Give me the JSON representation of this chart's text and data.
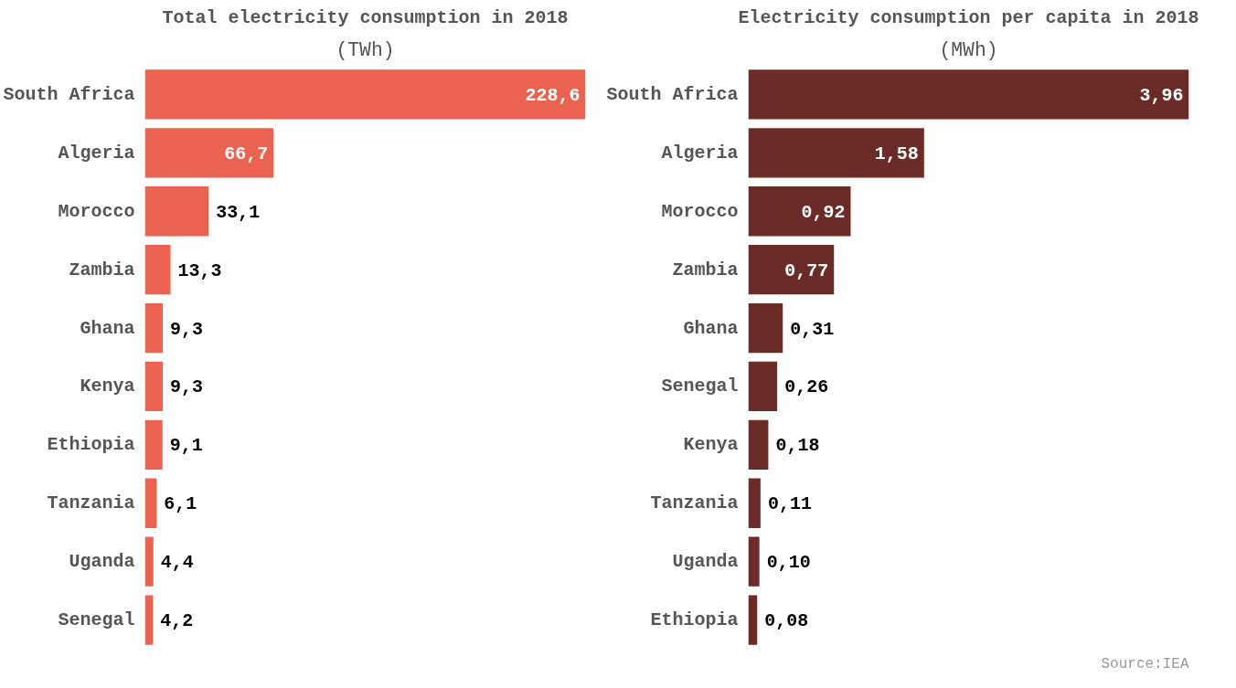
{
  "chart_data": [
    {
      "type": "bar",
      "orientation": "horizontal",
      "title": "Total electricity consumption in 2018",
      "subtitle": "(TWh)",
      "categories": [
        "South Africa",
        "Algeria",
        "Morocco",
        "Zambia",
        "Ghana",
        "Kenya",
        "Ethiopia",
        "Tanzania",
        "Uganda",
        "Senegal"
      ],
      "values": [
        228.6,
        66.7,
        33.1,
        13.3,
        9.3,
        9.3,
        9.1,
        6.1,
        4.4,
        4.2
      ],
      "value_labels": [
        "228,6",
        "66,7",
        "33,1",
        "13,3",
        "9,3",
        "9,3",
        "9,1",
        "6,1",
        "4,4",
        "4,2"
      ],
      "color": "#ec6251",
      "tick_labels": "y"
    },
    {
      "type": "bar",
      "orientation": "horizontal",
      "title": "Electricity consumption per capita in 2018",
      "subtitle": "(MWh)",
      "categories": [
        "South Africa",
        "Algeria",
        "Morocco",
        "Zambia",
        "Ghana",
        "Senegal",
        "Kenya",
        "Tanzania",
        "Uganda",
        "Ethiopia"
      ],
      "values": [
        3.96,
        1.58,
        0.92,
        0.77,
        0.31,
        0.26,
        0.18,
        0.11,
        0.1,
        0.08
      ],
      "value_labels": [
        "3,96",
        "1,58",
        "0,92",
        "0,77",
        "0,31",
        "0,26",
        "0,18",
        "0,11",
        "0,10",
        "0,08"
      ],
      "color": "#6b2c27",
      "tick_labels": "y",
      "annotations": [
        "Source:IEA"
      ]
    }
  ]
}
